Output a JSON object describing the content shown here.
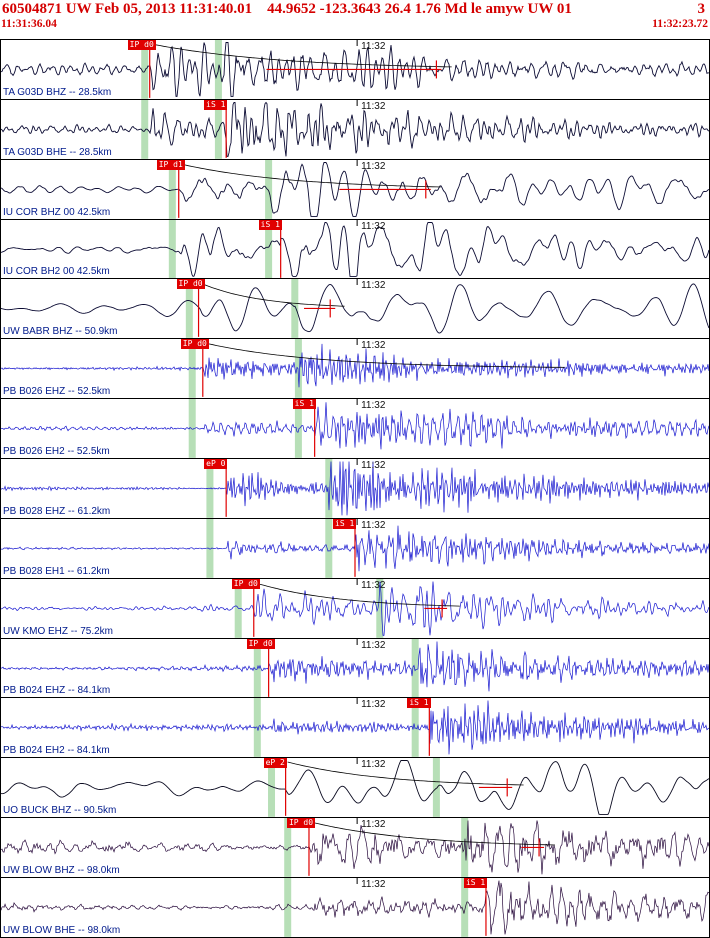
{
  "header": {
    "event_line": "60504871 UW Feb 05, 2013 11:31:40.01    44.9652 -123.3643 26.4 1.76 Md le amyw UW 01",
    "flag_count": "3",
    "window_start": "11:31:36.04",
    "window_end": "11:32:23.72"
  },
  "minute_label": "11:32",
  "minute_x": 0.503,
  "colors": {
    "header_text": "#d40000",
    "station_text": "#001a8c",
    "flag_bg": "#e00000",
    "flag_text": "#ffffff",
    "pick_line": "#e00000",
    "green_marker": "#b7dfb7",
    "coda_curve": "#000000",
    "minute_tick": "#000000",
    "dark": "#0c0c34",
    "blue": "#1616cf",
    "black2": "#0a0a20",
    "indigo": "#26083a"
  },
  "traces": [
    {
      "station": "TA G03D BHZ -- 28.5km",
      "pick_label": "IP d0",
      "pick_x": 0.21,
      "green": [
        0.203,
        0.307
      ],
      "p_x": 0.21,
      "s_x": 0.307,
      "pre": 6,
      "pa": 20,
      "sa": 16,
      "dp": 60,
      "ds": 170,
      "freq": 0.085,
      "rough": 0.3,
      "color": "dark",
      "curve": true,
      "coda": {
        "x": 0.615,
        "from": 0.375
      }
    },
    {
      "station": "TA G03D BHE -- 28.5km",
      "pick_label": "iS 1",
      "pick_x": 0.318,
      "green": [
        0.203,
        0.307
      ],
      "p_x": 0.21,
      "s_x": 0.318,
      "pre": 5,
      "pa": 9,
      "sa": 22,
      "dp": 70,
      "ds": 180,
      "freq": 0.1,
      "rough": 0.35,
      "color": "dark",
      "curve": false,
      "coda": null
    },
    {
      "station": "IU COR BHZ 00 42.5km",
      "pick_label": "IP d1",
      "pick_x": 0.251,
      "green": [
        0.242,
        0.378
      ],
      "p_x": 0.251,
      "s_x": 0.378,
      "pre": 8,
      "pa": 17,
      "sa": 19,
      "dp": 90,
      "ds": 200,
      "freq": 0.035,
      "rough": 0.15,
      "color": "dark",
      "curve": true,
      "coda": {
        "x": 0.6,
        "from": 0.478
      }
    },
    {
      "station": "IU COR BH2 00 42.5km",
      "pick_label": "iS 1",
      "pick_x": 0.395,
      "green": [
        0.242,
        0.378
      ],
      "p_x": 0.251,
      "s_x": 0.395,
      "pre": 8,
      "pa": 12,
      "sa": 22,
      "dp": 90,
      "ds": 210,
      "freq": 0.04,
      "rough": 0.15,
      "color": "dark",
      "curve": false,
      "coda": null
    },
    {
      "station": "UW BABR BHZ -- 50.9km",
      "pick_label": "IP d0",
      "pick_x": 0.279,
      "green": [
        0.266,
        0.415
      ],
      "p_x": 0.279,
      "s_x": 0.415,
      "pre": 9,
      "pa": 15,
      "sa": 17,
      "dp": 120,
      "ds": 230,
      "freq": 0.022,
      "rough": 0.1,
      "color": "dark",
      "curve": true,
      "coda": {
        "x": 0.465,
        "from": 0.428
      }
    },
    {
      "station": "PB B026 EHZ -- 52.5km",
      "pick_label": "IP d0",
      "pick_x": 0.285,
      "green": [
        0.27,
        0.42
      ],
      "p_x": 0.285,
      "s_x": 0.42,
      "pre": 1.7,
      "pa": 16,
      "sa": 16,
      "dp": 90,
      "ds": 200,
      "freq": 0.26,
      "rough": 0.6,
      "color": "blue",
      "curve": true,
      "coda": null
    },
    {
      "station": "PB B026 EH2 -- 52.5km",
      "pick_label": "iS 1",
      "pick_x": 0.443,
      "green": [
        0.27,
        0.42
      ],
      "p_x": 0.285,
      "s_x": 0.443,
      "pre": 1.7,
      "pa": 5,
      "sa": 20,
      "dp": 90,
      "ds": 200,
      "freq": 0.26,
      "rough": 0.6,
      "color": "blue",
      "curve": false,
      "coda": null
    },
    {
      "station": "PB B028 EHZ -- 61.2km",
      "pick_label": "eP 0",
      "pick_x": 0.318,
      "green": [
        0.295,
        0.463
      ],
      "p_x": 0.318,
      "s_x": 0.463,
      "pre": 2,
      "pa": 12,
      "sa": 24,
      "dp": 90,
      "ds": 170,
      "freq": 0.25,
      "rough": 0.6,
      "color": "blue",
      "curve": false,
      "coda": null
    },
    {
      "station": "PB B028 EH1 -- 61.2km",
      "pick_label": "iS 1",
      "pick_x": 0.5,
      "green": [
        0.295,
        0.463
      ],
      "p_x": 0.318,
      "s_x": 0.5,
      "pre": 2,
      "pa": 5,
      "sa": 18,
      "dp": 90,
      "ds": 180,
      "freq": 0.25,
      "rough": 0.6,
      "color": "blue",
      "curve": false,
      "coda": null
    },
    {
      "station": "UW KMO EHZ -- 75.2km",
      "pick_label": "IP d0",
      "pick_x": 0.357,
      "green": [
        0.335,
        0.535
      ],
      "p_x": 0.357,
      "s_x": 0.535,
      "pre": 4.5,
      "pa": 10,
      "sa": 17,
      "dp": 100,
      "ds": 130,
      "freq": 0.11,
      "rough": 0.5,
      "color": "blue",
      "curve": true,
      "coda": {
        "x": 0.623,
        "from": 0.598
      }
    },
    {
      "station": "PB B024 EHZ -- 84.1km",
      "pick_label": "IP d0",
      "pick_x": 0.378,
      "green": [
        0.362,
        0.585
      ],
      "p_x": 0.378,
      "s_x": 0.585,
      "pre": 3,
      "pa": 9,
      "sa": 18,
      "dp": 110,
      "ds": 130,
      "freq": 0.19,
      "rough": 0.55,
      "color": "blue",
      "curve": false,
      "coda": null
    },
    {
      "station": "PB B024 EH2 -- 84.1km",
      "pick_label": "iS 1",
      "pick_x": 0.605,
      "green": [
        0.362,
        0.585
      ],
      "p_x": 0.378,
      "s_x": 0.605,
      "pre": 3,
      "pa": 4,
      "sa": 19,
      "dp": 110,
      "ds": 140,
      "freq": 0.19,
      "rough": 0.55,
      "color": "blue",
      "curve": false,
      "coda": null
    },
    {
      "station": "UO BUCK BHZ -- 90.5km",
      "pick_label": "eP 2",
      "pick_x": 0.402,
      "green": [
        0.382,
        0.615
      ],
      "p_x": 0.402,
      "s_x": 0.615,
      "pre": 10,
      "pa": 13,
      "sa": 16,
      "dp": 150,
      "ds": 260,
      "freq": 0.018,
      "rough": 0.08,
      "color": "black2",
      "curve": true,
      "coda": {
        "x": 0.715,
        "from": 0.675
      }
    },
    {
      "station": "UW BLOW BHZ -- 98.0km",
      "pick_label": "IP d0",
      "pick_x": 0.435,
      "green": [
        0.405,
        0.655
      ],
      "p_x": 0.435,
      "s_x": 0.655,
      "pre": 6.5,
      "pa": 13,
      "sa": 19,
      "dp": 140,
      "ds": 170,
      "freq": 0.07,
      "rough": 0.85,
      "color": "indigo",
      "curve": true,
      "coda": {
        "x": 0.76,
        "from": 0.735
      }
    },
    {
      "station": "UW BLOW BHE -- 98.0km",
      "pick_label": "iS 1",
      "pick_x": 0.685,
      "green": [
        0.405,
        0.655
      ],
      "p_x": 0.435,
      "s_x": 0.685,
      "pre": 5,
      "pa": 6,
      "sa": 19,
      "dp": 140,
      "ds": 170,
      "freq": 0.08,
      "rough": 0.85,
      "color": "indigo",
      "curve": false,
      "coda": null
    }
  ]
}
